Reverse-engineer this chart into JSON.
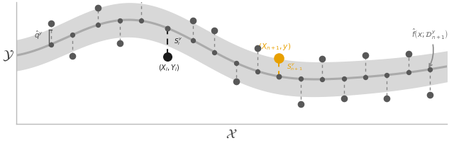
{
  "fig_width": 6.4,
  "fig_height": 2.02,
  "dpi": 100,
  "curve_color": "#aaaaaa",
  "band_color": "#d8d8d8",
  "dot_color": "#585858",
  "dot_special_color": "#E8A000",
  "dashed_color": "#888888",
  "background": "#ffffff",
  "ylabel": "$\\mathcal{Y}$",
  "xlabel": "$\\mathcal{X}$",
  "annotation_f": "$\\hat{f}\\left(x;\\mathcal{D}^y_{n+1}\\right)$",
  "annotation_qy": "$\\hat{q}^y$",
  "annotation_Si": "$S_i^y$",
  "annotation_Xi": "$(X_i, Y_i)$",
  "annotation_Sn1": "$S^y_{n+1}$",
  "annotation_Xn1": "$(X_{n+1}, y)$",
  "xlim": [
    0.0,
    1.0
  ],
  "ylim": [
    -0.05,
    1.0
  ]
}
